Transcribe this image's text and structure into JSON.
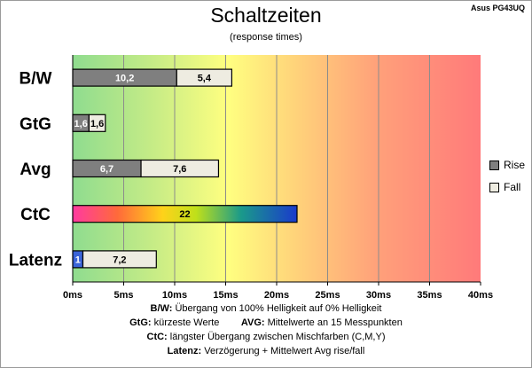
{
  "header": {
    "title": "Schaltzeiten",
    "subtitle": "(response times)",
    "model": "Asus PG43UQ"
  },
  "legend": {
    "items": [
      {
        "label": "Rise",
        "color": "#7f7f7f"
      },
      {
        "label": "Fall",
        "color": "#eeece1"
      }
    ]
  },
  "notes": [
    {
      "parts": [
        {
          "b": "B/W:"
        },
        {
          "t": " Übergang von 100% Helligkeit auf 0% Helligkeit"
        }
      ]
    },
    {
      "parts": [
        {
          "b": "GtG:"
        },
        {
          "t": " kürzeste Werte        "
        },
        {
          "b": "AVG:"
        },
        {
          "t": " Mittelwerte an 15 Messpunkten"
        }
      ]
    },
    {
      "parts": [
        {
          "b": "CtC:"
        },
        {
          "t": " längster Übergang zwischen Mischfarben (C,M,Y)"
        }
      ]
    },
    {
      "parts": [
        {
          "b": "Latenz:"
        },
        {
          "t": " Verzögerung + Mittelwert Avg rise/fall"
        }
      ]
    }
  ],
  "chart_data": {
    "type": "bar",
    "orientation": "horizontal",
    "stacked": true,
    "title": "Schaltzeiten",
    "subtitle": "(response times)",
    "categories": [
      "B/W",
      "GtG",
      "Avg",
      "CtC",
      "Latenz"
    ],
    "series": [
      {
        "name": "Rise",
        "values": [
          10.2,
          1.6,
          6.7,
          22,
          1
        ],
        "labels": [
          "10,2",
          "1,6",
          "6,7",
          "22",
          "1"
        ]
      },
      {
        "name": "Fall",
        "values": [
          5.4,
          1.6,
          7.6,
          null,
          7.2
        ],
        "labels": [
          "5,4",
          "1,6",
          "7,6",
          "",
          "7,2"
        ]
      }
    ],
    "special_bars": {
      "CtC": "gradient",
      "Latenz": "blue-rise"
    },
    "xlim": [
      0,
      40
    ],
    "xticks": [
      "0ms",
      "5ms",
      "10ms",
      "15ms",
      "20ms",
      "25ms",
      "30ms",
      "35ms",
      "40ms"
    ],
    "xtick_values": [
      0,
      5,
      10,
      15,
      20,
      25,
      30,
      35,
      40
    ],
    "background": "green-yellow-red gradient",
    "legend_position": "right"
  }
}
